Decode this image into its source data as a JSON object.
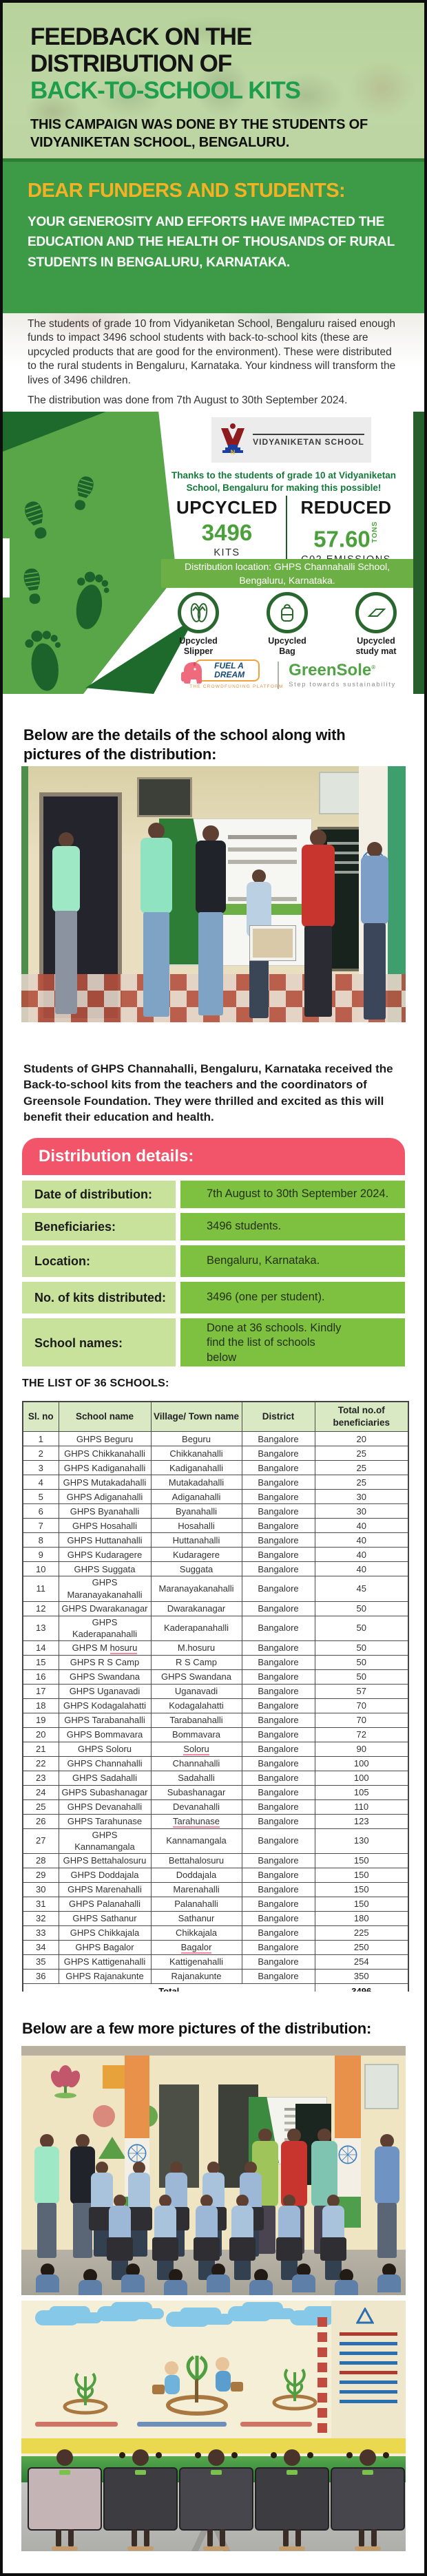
{
  "header": {
    "title_line1": "FEEDBACK ON THE DISTRIBUTION OF",
    "title_line2": "BACK-TO-SCHOOL KITS",
    "subtitle": "THIS CAMPAIGN WAS DONE BY THE STUDENTS OF VIDYANIKETAN SCHOOL, BENGALURU."
  },
  "banner": {
    "heading": "DEAR FUNDERS AND STUDENTS:",
    "body": "YOUR GENEROSITY AND EFFORTS HAVE IMPACTED THE EDUCATION AND THE HEALTH OF THOUSANDS OF RURAL STUDENTS IN BENGALURU, KARNATAKA."
  },
  "intro": {
    "para1": "The students of grade 10 from Vidyaniketan School, Bengaluru raised enough funds to impact 3496 school students with back-to-school kits (these are upcycled products that are good for the environment). These were distributed to the rural students in Bengaluru, Karnataka. Your kindness will transform the lives of 3496 children.",
    "para2": "The distribution was done from 7th August to 30th September 2024."
  },
  "certificate": {
    "logo_text": "VIDYANIKETAN SCHOOL",
    "thanks": "Thanks to the students of grade 10 at Vidyaniketan School, Bengaluru for making this possible!",
    "upcycled_label": "UPCYCLED",
    "upcycled_value": "3496",
    "upcycled_unit": "KITS",
    "reduced_label": "REDUCED",
    "reduced_value": "57.60",
    "reduced_unit_side": "TONS",
    "reduced_unit": "C02 EMISSIONS",
    "location_bar": "Distribution location: GHPS Channahalli School, Bengaluru, Karnataka.",
    "badges": [
      {
        "line1": "Upcycled",
        "line2": "Slipper"
      },
      {
        "line1": "Upcycled",
        "line2": "Bag"
      },
      {
        "line1": "Upcycled",
        "line2": "study mat"
      }
    ],
    "partners": {
      "fuel_line1": "FUEL A",
      "fuel_line2": "DREAM",
      "fuel_tagline": "THE CROWDFUNDING PLATFORM",
      "greensole_name": "GreenSole",
      "greensole_reg": "®",
      "greensole_tagline": "Step towards sustainability"
    }
  },
  "section_headings": {
    "details_intro": "Below are the details of the school along with pictures of the distribution:",
    "list_heading": "THE LIST OF 36 SCHOOLS:",
    "more_pictures": "Below are a few more pictures of the distribution:"
  },
  "caption_paragraph": "Students of GHPS Channahalli, Bengaluru, Karnataka received the Back-to-school kits from the teachers and the coordinators of Greensole Foundation. They were thrilled and excited as this will benefit their education and health.",
  "details": {
    "heading": "Distribution details:",
    "rows": [
      {
        "label": "Date of distribution:",
        "value": "7th August to 30th September 2024."
      },
      {
        "label": "Beneficiaries:",
        "value": "3496 students."
      },
      {
        "label": "Location:",
        "value": "Bengaluru, Karnataka."
      },
      {
        "label": "No. of kits distributed:",
        "value": "3496 (one per student)."
      },
      {
        "label": "School names:",
        "value": "Done at 36 schools. Kindly find the list of schools below"
      }
    ]
  },
  "school_list": {
    "columns": [
      "Sl. no",
      "School name",
      "Village/ Town name",
      "District",
      "Total no.of beneficiaries"
    ],
    "rows": [
      {
        "no": 1,
        "school": "GHPS Beguru",
        "village": "Beguru",
        "district": "Bangalore",
        "beneficiaries": 20
      },
      {
        "no": 2,
        "school": "GHPS Chikkanahalli",
        "village": "Chikkanahalli",
        "district": "Bangalore",
        "beneficiaries": 25
      },
      {
        "no": 3,
        "school": "GHPS Kadiganahalli",
        "village": "Kadiganahalli",
        "district": "Bangalore",
        "beneficiaries": 25
      },
      {
        "no": 4,
        "school": "GHPS Mutakadahalli",
        "village": "Mutakadahalli",
        "district": "Bangalore",
        "beneficiaries": 25
      },
      {
        "no": 5,
        "school": "GHPS Adiganahalli",
        "village": "Adiganahalli",
        "district": "Bangalore",
        "beneficiaries": 30
      },
      {
        "no": 6,
        "school": "GHPS Byanahalli",
        "village": "Byanahalli",
        "district": "Bangalore",
        "beneficiaries": 30
      },
      {
        "no": 7,
        "school": "GHPS Hosahalli",
        "village": "Hosahalli",
        "district": "Bangalore",
        "beneficiaries": 40
      },
      {
        "no": 8,
        "school": "GHPS Huttanahalli",
        "village": "Huttanahalli",
        "district": "Bangalore",
        "beneficiaries": 40
      },
      {
        "no": 9,
        "school": "GHPS Kudaragere",
        "village": "Kudaragere",
        "district": "Bangalore",
        "beneficiaries": 40
      },
      {
        "no": 10,
        "school": "GHPS Suggata",
        "village": "Suggata",
        "district": "Bangalore",
        "beneficiaries": 40
      },
      {
        "no": 11,
        "school": "GHPS Maranayakanahalli",
        "village": "Maranayakanahalli",
        "district": "Bangalore",
        "beneficiaries": 45
      },
      {
        "no": 12,
        "school": "GHPS Dwarakanagar",
        "village": "Dwarakanagar",
        "district": "Bangalore",
        "beneficiaries": 50
      },
      {
        "no": 13,
        "school": "GHPS Kaderapanahalli",
        "village": "Kaderapanahalli",
        "district": "Bangalore",
        "beneficiaries": 50
      },
      {
        "no": 14,
        "school": "GHPS M hosuru",
        "school_mark": "hosuru",
        "village": "M.hosuru",
        "district": "Bangalore",
        "beneficiaries": 50
      },
      {
        "no": 15,
        "school": "GHPS R S Camp",
        "village": "R S Camp",
        "district": "Bangalore",
        "beneficiaries": 50
      },
      {
        "no": 16,
        "school": "GHPS Swandana",
        "village": "GHPS Swandana",
        "district": "Bangalore",
        "beneficiaries": 50
      },
      {
        "no": 17,
        "school": "GHPS Uganavadi",
        "village": "Uganavadi",
        "district": "Bangalore",
        "beneficiaries": 57
      },
      {
        "no": 18,
        "school": "GHPS Kodagalahatti",
        "village": "Kodagalahatti",
        "district": "Bangalore",
        "beneficiaries": 70
      },
      {
        "no": 19,
        "school": "GHPS Tarabanahalli",
        "village": "Tarabanahalli",
        "district": "Bangalore",
        "beneficiaries": 70
      },
      {
        "no": 20,
        "school": "GHPS Bommavara",
        "village": "Bommavara",
        "district": "Bangalore",
        "beneficiaries": 72
      },
      {
        "no": 21,
        "school": "GHPS Soloru",
        "village": "Soloru",
        "village_mark": true,
        "district": "Bangalore",
        "beneficiaries": 90
      },
      {
        "no": 22,
        "school": "GHPS Channahalli",
        "village": "Channahalli",
        "district": "Bangalore",
        "beneficiaries": 100
      },
      {
        "no": 23,
        "school": "GHPS Sadahalli",
        "village": "Sadahalli",
        "district": "Bangalore",
        "beneficiaries": 100
      },
      {
        "no": 24,
        "school": "GHPS Subashanagar",
        "village": "Subashanagar",
        "district": "Bangalore",
        "beneficiaries": 105
      },
      {
        "no": 25,
        "school": "GHPS Devanahalli",
        "village": "Devanahalli",
        "district": "Bangalore",
        "beneficiaries": 110
      },
      {
        "no": 26,
        "school": "GHPS Tarahunase",
        "village": "Tarahunase",
        "village_mark": true,
        "district": "Bangalore",
        "beneficiaries": 123
      },
      {
        "no": 27,
        "school": "GHPS Kannamangala",
        "village": "Kannamangala",
        "district": "Bangalore",
        "beneficiaries": 130
      },
      {
        "no": 28,
        "school": "GHPS Bettahalosuru",
        "village": "Bettahalosuru",
        "district": "Bangalore",
        "beneficiaries": 150
      },
      {
        "no": 29,
        "school": "GHPS Doddajala",
        "village": "Doddajala",
        "district": "Bangalore",
        "beneficiaries": 150
      },
      {
        "no": 30,
        "school": "GHPS Marenahalli",
        "village": "Marenahalli",
        "district": "Bangalore",
        "beneficiaries": 150
      },
      {
        "no": 31,
        "school": "GHPS Palanahalli",
        "village": "Palanahalli",
        "district": "Bangalore",
        "beneficiaries": 150
      },
      {
        "no": 32,
        "school": "GHPS Sathanur",
        "village": "Sathanur",
        "district": "Bangalore",
        "beneficiaries": 180
      },
      {
        "no": 33,
        "school": "GHPS Chikkajala",
        "village": "Chikkajala",
        "district": "Bangalore",
        "beneficiaries": 225
      },
      {
        "no": 34,
        "school": "GHPS Bagalor",
        "village": "Bagalor",
        "village_mark": true,
        "district": "Bangalore",
        "beneficiaries": 250
      },
      {
        "no": 35,
        "school": "GHPS Kattigenahalli",
        "village": "Kattigenahalli",
        "district": "Bangalore",
        "beneficiaries": 254
      },
      {
        "no": 36,
        "school": "GHPS Rajanakunte",
        "village": "Rajanakunte",
        "district": "Bangalore",
        "beneficiaries": 350
      }
    ],
    "total_label": "Total",
    "total_value": "3496"
  }
}
